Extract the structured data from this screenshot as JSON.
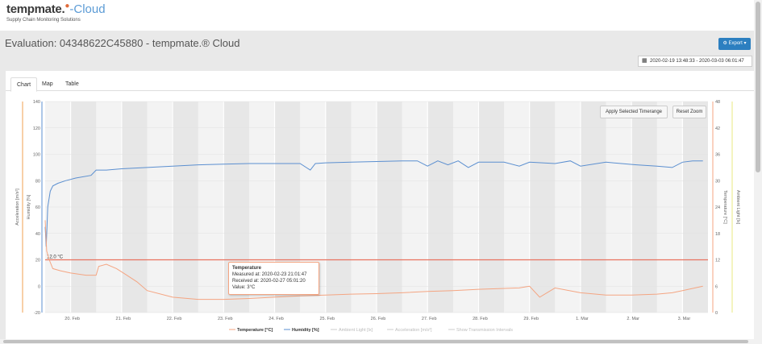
{
  "brand": {
    "name": "tempmate.",
    "cloud": "-Cloud",
    "tagline": "Supply Chain Monitoring Solutions"
  },
  "header": {
    "title": "Evaluation: 04348622C45880 - tempmate.® Cloud",
    "export_label": "Export ▾",
    "date_range": "2020-02-19 13:48:33 - 2020-03-03 06:01:47"
  },
  "tabs": [
    {
      "label": "Chart"
    },
    {
      "label": "Map"
    },
    {
      "label": "Table"
    }
  ],
  "controls": {
    "apply_label": "Apply Selected Timerange",
    "reset_label": "Reset Zoom"
  },
  "tooltip": {
    "title": "Temperature",
    "measured": "Measured at: 2020-02-23 21:01:47",
    "received": "Received at: 2020-02-27 05:01:20",
    "value": "Value: 3°C"
  },
  "colors": {
    "temperature": "#f4a582",
    "humidity": "#5b8fd0",
    "threshold": "#e8735f",
    "accel": "#f0a050",
    "light": "#e8e880"
  },
  "chart_data": {
    "type": "line",
    "title": "",
    "threshold_label": "12.0 °C",
    "threshold": 12,
    "left_axis_label": "Acceleration [m/s²]",
    "left_axis2_label": "Humidity [%]",
    "right_axis_label": "Temperature [°C]",
    "right_axis2_label": "Ambient Light [lx]",
    "humidity_ticks": [
      "140",
      "120",
      "100",
      "80",
      "60",
      "40",
      "20",
      "0",
      "-20"
    ],
    "humidity_ylim": [
      -20,
      140
    ],
    "temperature_ticks": [
      "48",
      "42",
      "36",
      "30",
      "24",
      "18",
      "12",
      "6",
      "0"
    ],
    "temperature_ylim": [
      0,
      48
    ],
    "x_ticks": [
      "20. Feb",
      "21. Feb",
      "22. Feb",
      "23. Feb",
      "24. Feb",
      "25. Feb",
      "26. Feb",
      "27. Feb",
      "28. Feb",
      "29. Feb",
      "1. Mar",
      "2. Mar",
      "3. Mar"
    ],
    "x_range": [
      0,
      13
    ],
    "legend": [
      {
        "label": "Temperature [°C]",
        "active": true
      },
      {
        "label": "Humidity [%]",
        "active": true
      },
      {
        "label": "Ambient Light [lx]",
        "active": false
      },
      {
        "label": "Acceleration [m/s²]",
        "active": false
      },
      {
        "label": "Show Transmission Intervals",
        "active": false
      }
    ],
    "series": [
      {
        "name": "Humidity [%]",
        "axis": "humidity",
        "x": [
          0,
          0.02,
          0.05,
          0.1,
          0.15,
          0.25,
          0.4,
          0.6,
          0.9,
          1.0,
          1.2,
          1.5,
          2.0,
          2.5,
          3.0,
          3.5,
          4.0,
          4.5,
          5.0,
          5.2,
          5.3,
          5.5,
          6.0,
          6.5,
          7.0,
          7.3,
          7.5,
          7.7,
          7.9,
          8.1,
          8.3,
          8.5,
          9.0,
          9.3,
          9.5,
          10.0,
          10.3,
          10.5,
          11.0,
          11.3,
          11.6,
          12.0,
          12.3,
          12.5,
          12.7,
          12.9
        ],
        "y": [
          45,
          30,
          60,
          72,
          76,
          78,
          80,
          82,
          84,
          88,
          88,
          89,
          90,
          91,
          92,
          92.5,
          93,
          93,
          93,
          88,
          93,
          93.5,
          94,
          94.5,
          95,
          95,
          91,
          95,
          92,
          95,
          90,
          94,
          94,
          91,
          94,
          93,
          95,
          91,
          94,
          93,
          92,
          91,
          90,
          94,
          95,
          95
        ]
      },
      {
        "name": "Temperature [°C]",
        "axis": "temperature",
        "x": [
          0,
          0.03,
          0.08,
          0.15,
          0.3,
          0.5,
          0.8,
          1.0,
          1.05,
          1.2,
          1.4,
          1.6,
          1.8,
          2.0,
          2.5,
          3.0,
          3.5,
          4.0,
          4.5,
          5.0,
          5.5,
          6.0,
          6.5,
          7.0,
          7.5,
          8.0,
          8.5,
          9.0,
          9.3,
          9.5,
          9.7,
          10.0,
          10.5,
          11.0,
          11.5,
          12.0,
          12.3,
          12.5,
          12.9
        ],
        "y": [
          21,
          14,
          12,
          10,
          9.5,
          9,
          8.5,
          8.5,
          10.5,
          11,
          10,
          8.5,
          7,
          5,
          3.5,
          3,
          3,
          3.2,
          3.5,
          3.8,
          4,
          4.2,
          4.3,
          4.5,
          4.8,
          5,
          5.3,
          5.5,
          5.6,
          6,
          3.5,
          5.6,
          4.5,
          4,
          4,
          4.2,
          4.5,
          5,
          6
        ]
      }
    ]
  }
}
